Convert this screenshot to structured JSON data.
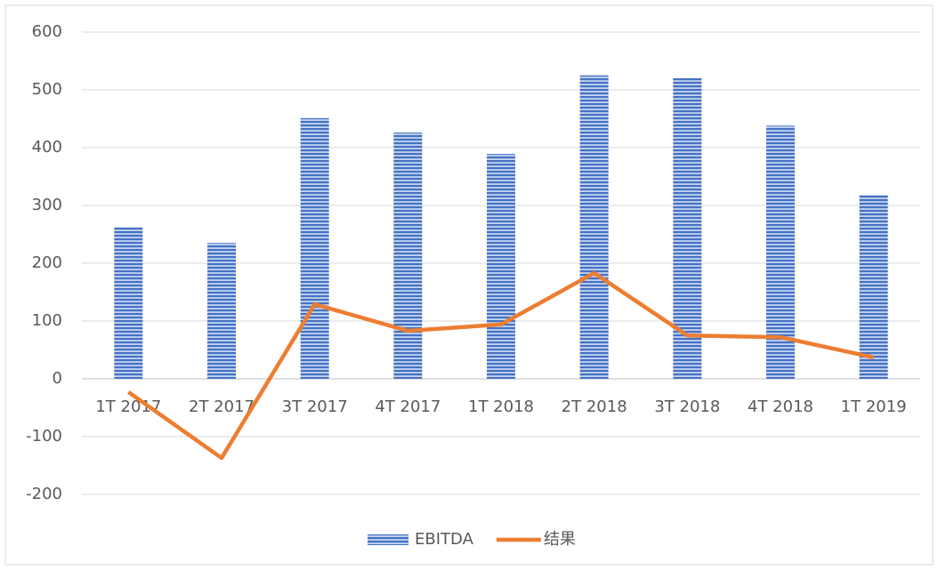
{
  "chart_data": {
    "type": "bar+line",
    "categories": [
      "1T 2017",
      "2T 2017",
      "3T 2017",
      "4T 2017",
      "1T 2018",
      "2T 2018",
      "3T 2018",
      "4T 2018",
      "1T 2019"
    ],
    "series": [
      {
        "name": "EBITDA",
        "type": "bar",
        "color": "#4472c4",
        "values": [
          262,
          235,
          451,
          426,
          389,
          525,
          520,
          438,
          318
        ]
      },
      {
        "name": "结果",
        "type": "line",
        "color": "#ed7d31",
        "values": [
          -23,
          -137,
          129,
          83,
          94,
          183,
          75,
          72,
          37
        ]
      }
    ],
    "ylim": [
      -200,
      600
    ],
    "yticks": [
      -200,
      -100,
      0,
      100,
      200,
      300,
      400,
      500,
      600
    ],
    "grid": true,
    "legend": "bottom"
  }
}
